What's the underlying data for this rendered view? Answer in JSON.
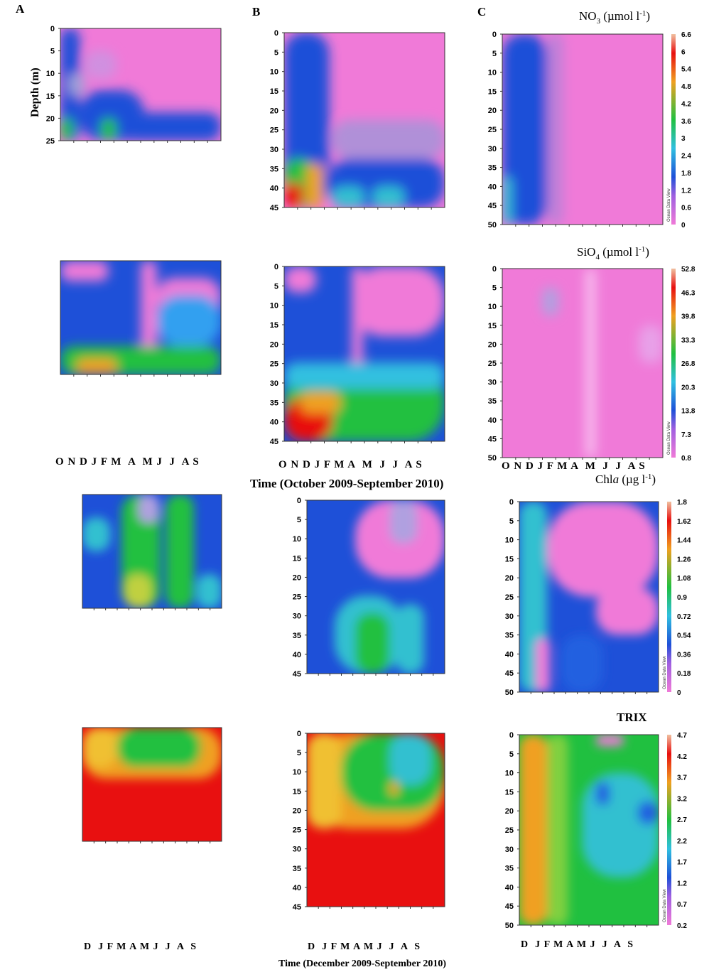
{
  "figure": {
    "panel_labels": [
      "A",
      "B",
      "C"
    ],
    "y_label": "Depth (m)",
    "time_label_top": "Time (October 2009-September 2010)",
    "time_label_bottom": "Time (December 2009-September 2010)",
    "months_top_a": "O N D J F M  A  M J  J  A S",
    "months_top_b": "O N D J F M A  M  J  J  A S",
    "months_top_c": "O N D J F M A  M  J  J  A S",
    "months_bottom_a": "D  J F M A M J  J  A  S",
    "months_bottom_b": "D  J F M A M J  J  A  S",
    "months_bottom_c": "D  J F M A M J  J  A  S",
    "ocean_data_view": "Ocean Data View",
    "colors": {
      "low": "#f07ad8",
      "mid_low": "#1e50d8",
      "mid": "#20c040",
      "mid_high": "#f0a020",
      "high": "#e81010"
    }
  },
  "chart_data": [
    {
      "type": "heatmap",
      "id": "row1-A",
      "title": "",
      "variable": "NO3",
      "depth_ticks": [
        "0",
        "5",
        "10",
        "15",
        "20",
        "25"
      ],
      "pattern": "nitrate_A"
    },
    {
      "type": "heatmap",
      "id": "row1-B",
      "title": "",
      "variable": "NO3",
      "depth_ticks": [
        "0",
        "5",
        "10",
        "15",
        "20",
        "25",
        "30",
        "35",
        "40",
        "45"
      ],
      "pattern": "nitrate_B"
    },
    {
      "type": "heatmap",
      "id": "row1-C",
      "title": "NO3 (µmol l-1)",
      "variable": "NO3",
      "depth_ticks": [
        "0",
        "5",
        "10",
        "15",
        "20",
        "25",
        "30",
        "35",
        "40",
        "45",
        "50"
      ],
      "colorbar_ticks": [
        "6.6",
        "6",
        "5.4",
        "4.8",
        "4.2",
        "3.6",
        "3",
        "2.4",
        "1.8",
        "1.2",
        "0.6",
        "0"
      ],
      "pattern": "nitrate_C"
    },
    {
      "type": "heatmap",
      "id": "row2-A",
      "title": "",
      "variable": "SiO4",
      "depth_ticks": [],
      "pattern": "silicate_A"
    },
    {
      "type": "heatmap",
      "id": "row2-B",
      "title": "",
      "variable": "SiO4",
      "depth_ticks": [
        "0",
        "5",
        "10",
        "15",
        "20",
        "25",
        "30",
        "35",
        "40",
        "45"
      ],
      "pattern": "silicate_B"
    },
    {
      "type": "heatmap",
      "id": "row2-C",
      "title": "SiO4 (µmol l-1)",
      "variable": "SiO4",
      "depth_ticks": [
        "0",
        "5",
        "10",
        "15",
        "20",
        "25",
        "30",
        "35",
        "40",
        "45",
        "50"
      ],
      "colorbar_ticks": [
        "52.8",
        "46.3",
        "39.8",
        "33.3",
        "26.8",
        "20.3",
        "13.8",
        "7.3",
        "0.8"
      ],
      "pattern": "silicate_C"
    },
    {
      "type": "heatmap",
      "id": "row3-A",
      "title": "",
      "variable": "Chla",
      "depth_ticks": [],
      "pattern": "chla_A"
    },
    {
      "type": "heatmap",
      "id": "row3-B",
      "title": "",
      "variable": "Chla",
      "depth_ticks": [
        "0",
        "5",
        "10",
        "15",
        "20",
        "25",
        "30",
        "35",
        "40",
        "45"
      ],
      "pattern": "chla_B"
    },
    {
      "type": "heatmap",
      "id": "row3-C",
      "title": "Chla (µg l-1)",
      "variable": "Chla",
      "depth_ticks": [
        "0",
        "5",
        "10",
        "15",
        "20",
        "25",
        "30",
        "35",
        "40",
        "45",
        "50"
      ],
      "colorbar_ticks": [
        "1.8",
        "1.62",
        "1.44",
        "1.26",
        "1.08",
        "0.9",
        "0.72",
        "0.54",
        "0.36",
        "0.18",
        "0"
      ],
      "pattern": "chla_C"
    },
    {
      "type": "heatmap",
      "id": "row4-A",
      "title": "",
      "variable": "TRIX",
      "depth_ticks": [],
      "pattern": "trix_A"
    },
    {
      "type": "heatmap",
      "id": "row4-B",
      "title": "",
      "variable": "TRIX",
      "depth_ticks": [
        "0",
        "5",
        "10",
        "15",
        "20",
        "25",
        "30",
        "35",
        "40",
        "45"
      ],
      "pattern": "trix_B"
    },
    {
      "type": "heatmap",
      "id": "row4-C",
      "title": "TRIX",
      "variable": "TRIX",
      "depth_ticks": [
        "0",
        "5",
        "10",
        "15",
        "20",
        "25",
        "30",
        "35",
        "40",
        "45",
        "50"
      ],
      "colorbar_ticks": [
        "4.7",
        "4.2",
        "3.7",
        "3.2",
        "2.7",
        "2.2",
        "1.7",
        "1.2",
        "0.7",
        "0.2"
      ],
      "pattern": "trix_C"
    }
  ]
}
